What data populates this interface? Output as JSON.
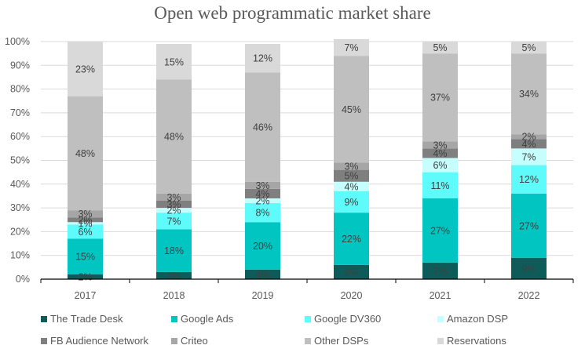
{
  "chart_data": {
    "type": "bar",
    "stacked": true,
    "title": "Open web programmatic market share",
    "xlabel": "",
    "ylabel": "",
    "ylim": [
      0,
      100
    ],
    "yticks": [
      "0%",
      "10%",
      "20%",
      "30%",
      "40%",
      "50%",
      "60%",
      "70%",
      "80%",
      "90%",
      "100%"
    ],
    "grid": true,
    "legend_position": "bottom",
    "categories": [
      "2017",
      "2018",
      "2019",
      "2020",
      "2021",
      "2022"
    ],
    "series": [
      {
        "name": "The Trade Desk",
        "color": "#0d5c5a",
        "label_color": "#ffffff",
        "values": [
          2,
          3,
          4,
          6,
          7,
          9
        ]
      },
      {
        "name": "Google Ads",
        "color": "#00c5c1",
        "label_color": "#404040",
        "values": [
          15,
          18,
          20,
          22,
          27,
          27
        ]
      },
      {
        "name": "Google DV360",
        "color": "#5ffbfb",
        "label_color": "#404040",
        "values": [
          6,
          7,
          8,
          9,
          11,
          12
        ]
      },
      {
        "name": "Amazon DSP",
        "color": "#c6fdfd",
        "label_color": "#404040",
        "values": [
          1,
          2,
          2,
          4,
          6,
          7
        ]
      },
      {
        "name": "FB Audience Network",
        "color": "#7f7f7f",
        "label_color": "#404040",
        "values": [
          2,
          3,
          4,
          5,
          4,
          4
        ]
      },
      {
        "name": "Criteo",
        "color": "#a6a6a6",
        "label_color": "#404040",
        "values": [
          3,
          3,
          3,
          3,
          3,
          2
        ]
      },
      {
        "name": "Other DSPs",
        "color": "#bfbfbf",
        "label_color": "#404040",
        "values": [
          48,
          48,
          46,
          45,
          37,
          34
        ]
      },
      {
        "name": "Reservations",
        "color": "#d9d9d9",
        "label_color": "#404040",
        "values": [
          23,
          15,
          12,
          7,
          5,
          5
        ]
      }
    ],
    "value_suffix": "%"
  }
}
